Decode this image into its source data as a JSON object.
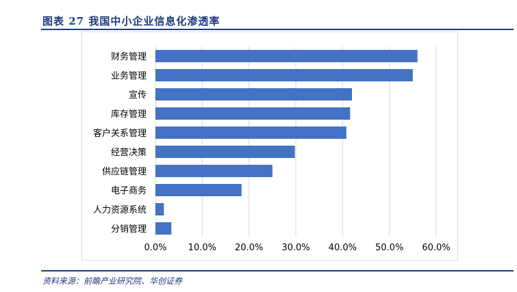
{
  "figure": {
    "title": "图表 27   我国中小企业信息化渗透率",
    "source": "资料来源：前瞻产业研究院、华创证券"
  },
  "colors": {
    "bar": "#4472c4",
    "grid": "#d9d9d9",
    "rule": "#1f3a7a"
  },
  "chart_data": {
    "type": "bar",
    "orientation": "horizontal",
    "categories": [
      "财务管理",
      "业务管理",
      "宣传",
      "库存管理",
      "客户关系管理",
      "经营决策",
      "供应链管理",
      "电子商务",
      "人力资源系统",
      "分销管理"
    ],
    "values": [
      56.0,
      55.0,
      42.0,
      41.6,
      40.8,
      29.8,
      25.0,
      18.4,
      1.8,
      3.4
    ],
    "x_ticks": [
      "0.0%",
      "10.0%",
      "20.0%",
      "30.0%",
      "40.0%",
      "50.0%",
      "60.0%"
    ],
    "xlim": [
      0,
      60
    ],
    "grid": true
  }
}
